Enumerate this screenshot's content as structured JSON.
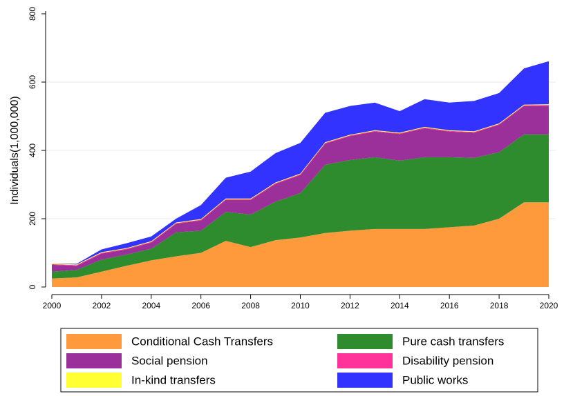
{
  "chart_data": {
    "type": "stacked_area",
    "ylabel": "Individuals(1,000,000)",
    "x": [
      2000,
      2001,
      2002,
      2003,
      2004,
      2005,
      2006,
      2007,
      2008,
      2009,
      2010,
      2011,
      2012,
      2013,
      2014,
      2015,
      2016,
      2017,
      2018,
      2019,
      2020
    ],
    "xlim": [
      2000,
      2020
    ],
    "xticks": [
      2000,
      2002,
      2004,
      2006,
      2008,
      2010,
      2012,
      2014,
      2016,
      2018,
      2020
    ],
    "ylim": [
      0,
      800
    ],
    "yticks": [
      0,
      200,
      400,
      600,
      800
    ],
    "grid": true,
    "series": [
      {
        "name": "Conditional Cash Transfers",
        "color": "#ff9a3c",
        "values": [
          25,
          28,
          45,
          62,
          78,
          90,
          100,
          135,
          117,
          137,
          145,
          158,
          165,
          170,
          170,
          170,
          175,
          180,
          200,
          248,
          248
        ]
      },
      {
        "name": "Pure cash transfers",
        "color": "#2e8b2e",
        "values": [
          20,
          22,
          35,
          33,
          34,
          70,
          65,
          85,
          95,
          113,
          130,
          200,
          207,
          210,
          200,
          210,
          205,
          198,
          195,
          199,
          199
        ]
      },
      {
        "name": "Social pension",
        "color": "#9b309b",
        "values": [
          20,
          12,
          18,
          15,
          18,
          25,
          30,
          35,
          43,
          52,
          53,
          62,
          70,
          75,
          78,
          85,
          75,
          74,
          80,
          83,
          83
        ]
      },
      {
        "name": "Disability pension",
        "color": "#ff3399",
        "values": [
          2,
          2,
          2,
          2,
          2,
          2,
          2,
          2,
          2,
          2,
          2,
          2,
          2,
          2,
          2,
          2,
          2,
          2,
          2,
          2,
          3
        ]
      },
      {
        "name": "In-kind transfers",
        "color": "#ffff33",
        "values": [
          2,
          2,
          2,
          2,
          2,
          2,
          2,
          2,
          2,
          2,
          2,
          2,
          2,
          2,
          2,
          2,
          2,
          2,
          2,
          2,
          2
        ]
      },
      {
        "name": "Public works",
        "color": "#3333ff",
        "values": [
          0,
          2,
          8,
          14,
          14,
          11,
          41,
          61,
          79,
          86,
          90,
          86,
          84,
          81,
          63,
          81,
          81,
          89,
          89,
          106,
          126
        ]
      }
    ]
  }
}
